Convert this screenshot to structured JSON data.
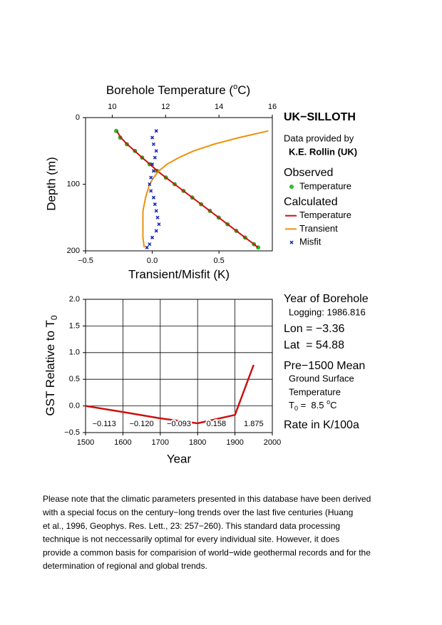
{
  "chart_data": [
    {
      "type": "profile",
      "title": "UK−SILLOTH",
      "source": [
        "Data provided by",
        "K.E. Rollin (UK)"
      ],
      "x2label": [
        "Borehole Temperature (",
        "o",
        "C)"
      ],
      "xlabel": "Transient/Misfit (K)",
      "ylabel": "Depth (m)",
      "xlim": [
        -0.5,
        0.9
      ],
      "xticks": [
        {
          "value": -0.5,
          "label": "−0.5"
        },
        {
          "value": 0,
          "label": "0.0"
        },
        0.5
      ],
      "x2lim": [
        9,
        16
      ],
      "x2ticks": [
        10,
        12,
        14,
        16
      ],
      "ylim": [
        0,
        200
      ],
      "yticks": [
        0,
        100,
        200
      ],
      "inverted_y": true,
      "grid": false,
      "legend_groups": [
        "Observed",
        "Calculated"
      ],
      "series": [
        {
          "name": "Temperature",
          "group": 0,
          "axis": "x2",
          "marker": "circle",
          "color": "#22cc22",
          "depths": [
            20,
            30,
            40,
            50,
            60,
            70,
            80,
            90,
            100,
            110,
            120,
            130,
            140,
            150,
            160,
            170,
            180,
            190,
            195
          ],
          "values": [
            10.15,
            10.3,
            10.55,
            10.85,
            11.12,
            11.4,
            11.68,
            12.01,
            12.34,
            12.67,
            13.0,
            13.33,
            13.66,
            13.99,
            14.32,
            14.65,
            14.98,
            15.31,
            15.47
          ]
        },
        {
          "name": "Temperature",
          "group": 1,
          "axis": "x2",
          "marker": "line",
          "color": "#cc1111",
          "depths": [
            20,
            30,
            40,
            50,
            60,
            70,
            80,
            90,
            100,
            110,
            120,
            130,
            140,
            150,
            160,
            170,
            180,
            190,
            195
          ],
          "values": [
            10.17,
            10.32,
            10.56,
            10.84,
            11.12,
            11.41,
            11.69,
            12.01,
            12.34,
            12.67,
            13.0,
            13.33,
            13.66,
            13.99,
            14.32,
            14.65,
            14.98,
            15.31,
            15.46
          ]
        },
        {
          "name": "Transient",
          "group": 1,
          "axis": "x",
          "marker": "line",
          "color": "#f0900a",
          "depths": [
            20,
            30,
            40,
            50,
            60,
            70,
            80,
            90,
            100,
            120,
            140,
            160,
            180,
            195
          ],
          "values": [
            0.87,
            0.65,
            0.46,
            0.31,
            0.2,
            0.11,
            0.05,
            0.01,
            -0.02,
            -0.05,
            -0.07,
            -0.07,
            -0.07,
            -0.06
          ]
        },
        {
          "name": "Misfit",
          "group": 1,
          "axis": "x",
          "marker": "cross",
          "color": "#1122bb",
          "depths": [
            20,
            30,
            40,
            50,
            60,
            70,
            80,
            90,
            100,
            110,
            120,
            130,
            140,
            150,
            160,
            170,
            180,
            190,
            195
          ],
          "values": [
            0.03,
            0,
            0.01,
            0.03,
            0.02,
            0,
            0.01,
            -0.01,
            -0.02,
            -0.01,
            0.01,
            0.02,
            0.03,
            0.04,
            0.05,
            0.03,
            0,
            -0.02,
            -0.04
          ]
        }
      ]
    },
    {
      "type": "line",
      "xlabel": "Year",
      "ylabel": [
        "GST Relative to T",
        "0"
      ],
      "xlim": [
        1500,
        2000
      ],
      "xticks": [
        1500,
        1600,
        1700,
        1800,
        1900,
        2000
      ],
      "ylim": [
        -0.5,
        2.0
      ],
      "yticks": [
        {
          "value": -0.5,
          "label": "−0.5"
        },
        {
          "value": 0,
          "label": "0.0"
        },
        0.5,
        {
          "value": 1,
          "label": "1.0"
        },
        1.5,
        {
          "value": 2,
          "label": "2.0"
        }
      ],
      "grid": true,
      "x": [
        1500,
        1600,
        1700,
        1800,
        1900,
        1950
      ],
      "series": [
        {
          "color": "#cc1111",
          "values": [
            0,
            -0.113,
            -0.233,
            -0.326,
            -0.168,
            0.77
          ]
        }
      ],
      "rate_labels": [
        "−0.113",
        "−0.120",
        "−0.093",
        "0.158",
        "1.875"
      ]
    }
  ],
  "sidebar": {
    "heading": "Year of Borehole",
    "logging": "Logging: 1986.816",
    "lon": "Lon = −3.36",
    "lat": "Lat  = 54.88",
    "mean_heading": "Pre−1500 Mean",
    "mean_lines": [
      "Ground Surface",
      "Temperature"
    ],
    "t0": [
      "T",
      "0",
      " =  8.5 ",
      "o",
      "C"
    ],
    "rate_heading": "Rate in K/100a"
  },
  "note": [
    "Please note that the climatic parameters presented in this database have been derived",
    "with a special focus on the century−long trends over the last five centuries (Huang",
    "et al., 1996, Geophys. Res. Lett., 23: 257−260). This standard data processing",
    "technique is not neccessarily optimal for every individual site. However, it does",
    "provide a common basis for comparision of world−wide geothermal records and for the",
    "determination of regional and global trends."
  ]
}
